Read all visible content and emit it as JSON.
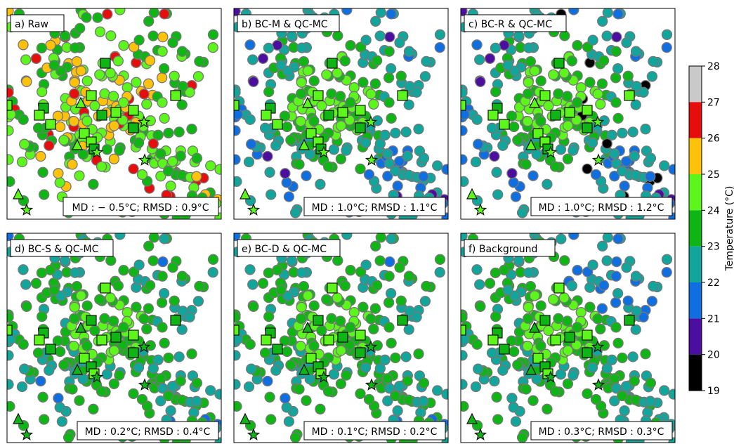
{
  "colors": {
    "marker_edge": "#777777",
    "symbol_edge": "#111111",
    "colorbar": [
      "#000000",
      "#4b0ea0",
      "#0f6fe0",
      "#11a59c",
      "#0fb515",
      "#5cf51c",
      "#ffc20a",
      "#e60d0d",
      "#c9c9c9"
    ]
  },
  "chart_data": {
    "type": "map-scatter",
    "variable": "Temperature (°C)",
    "colorbar": {
      "label": "Temperature (°C)",
      "ticks": [
        "28",
        "27",
        "26",
        "25",
        "24",
        "23",
        "22",
        "21",
        "20",
        "19"
      ],
      "range": [
        19,
        28
      ]
    },
    "panels": [
      {
        "key": "a",
        "title": "a) Raw",
        "stats": "MD : − 0.5°C; RMSD : 0.9°C",
        "md": -0.5,
        "rmsd": 0.9
      },
      {
        "key": "b",
        "title": "b) BC-M & QC-MC",
        "stats": "MD : 1.0°C; RMSD : 1.1°C",
        "md": 1.0,
        "rmsd": 1.1
      },
      {
        "key": "c",
        "title": "c) BC-R & QC-MC",
        "stats": "MD : 1.0°C; RMSD : 1.2°C",
        "md": 1.0,
        "rmsd": 1.2
      },
      {
        "key": "d",
        "title": "d) BC-S & QC-MC",
        "stats": "MD : 0.2°C; RMSD : 0.4°C",
        "md": 0.2,
        "rmsd": 0.4
      },
      {
        "key": "e",
        "title": "e) BC-D & QC-MC",
        "stats": "MD : 0.1°C; RMSD : 0.2°C",
        "md": 0.1,
        "rmsd": 0.2
      },
      {
        "key": "f",
        "title": "f) Background",
        "stats": "MD : 0.3°C; RMSD : 0.3°C",
        "md": 0.3,
        "rmsd": 0.3
      }
    ]
  }
}
